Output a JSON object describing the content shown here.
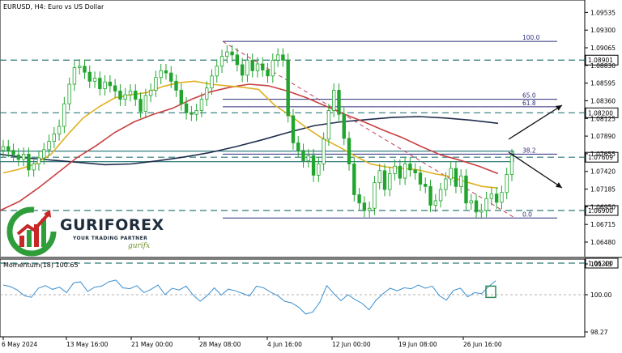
{
  "header": {
    "title": "EURUSD, H4:  Euro vs US Dollar"
  },
  "brand": {
    "name": "GURIFOREX",
    "tagline": "YOUR TRADING PARTNER",
    "signature": "gurifx"
  },
  "colors": {
    "price_candle": "#22a52e",
    "ema_fast": "#e0b020",
    "ema_slow": "#c94040",
    "ma_long": "#1f2d4d",
    "fib": "#2c2c7a",
    "level": "#2d7a78",
    "momentum": "#3a8fd0",
    "arrow": "#111111"
  },
  "chart_data": [
    {
      "type": "line",
      "title": "EURUSD, H4:  Euro vs US Dollar",
      "xlabel": "",
      "ylabel": "",
      "ylim": [
        1.0634,
        1.0955
      ],
      "x_ticks": [
        "6 May 2024",
        "13 May 16:00",
        "21 May 00:00",
        "28 May 08:00",
        "4 Jun 16:00",
        "12 Jun 00:00",
        "19 Jun 08:00",
        "26 Jun 16:00"
      ],
      "y_ticks": [
        1.09535,
        1.093,
        1.09065,
        1.0883,
        1.08595,
        1.0836,
        1.08125,
        1.0789,
        1.07655,
        1.0742,
        1.07185,
        1.0695,
        1.06715,
        1.0648
      ],
      "series": [
        {
          "name": "price",
          "values": [
            1.0775,
            1.077,
            1.0764,
            1.0758,
            1.0765,
            1.0744,
            1.0752,
            1.076,
            1.0771,
            1.0782,
            1.0792,
            1.0802,
            1.0832,
            1.0858,
            1.088,
            1.0882,
            1.0874,
            1.0862,
            1.0866,
            1.0852,
            1.0861,
            1.0856,
            1.0849,
            1.0838,
            1.0844,
            1.0849,
            1.0838,
            1.0822,
            1.0843,
            1.085,
            1.0867,
            1.0876,
            1.0873,
            1.0862,
            1.085,
            1.0832,
            1.082,
            1.0818,
            1.0823,
            1.0838,
            1.0853,
            1.0869,
            1.0882,
            1.0895,
            1.0901,
            1.0897,
            1.0884,
            1.087,
            1.089,
            1.0876,
            1.0885,
            1.0877,
            1.0869,
            1.089,
            1.0897,
            1.089,
            1.0816,
            1.078,
            1.077,
            1.0756,
            1.0763,
            1.0737,
            1.0752,
            1.0785,
            1.0823,
            1.085,
            1.0818,
            1.0786,
            1.0752,
            1.0711,
            1.07,
            1.069,
            1.0693,
            1.0727,
            1.0743,
            1.0718,
            1.0739,
            1.0749,
            1.0733,
            1.0752,
            1.0744,
            1.074,
            1.0725,
            1.0722,
            1.0697,
            1.0703,
            1.0718,
            1.0732,
            1.0746,
            1.0722,
            1.0736,
            1.07,
            1.0703,
            1.0688,
            1.069,
            1.0706,
            1.0712,
            1.0701,
            1.0714,
            1.0738,
            1.0763
          ]
        },
        {
          "name": "ema_fast",
          "values": [
            1.074,
            1.0745,
            1.0752,
            1.0765,
            1.079,
            1.0813,
            1.0828,
            1.084,
            1.0844,
            1.0847,
            1.0855,
            1.086,
            1.0862,
            1.0858,
            1.0856,
            1.0854,
            1.0851,
            1.083,
            1.0816,
            1.08,
            1.0786,
            1.0775,
            1.0763,
            1.0752,
            1.0748,
            1.0746,
            1.0744,
            1.0739,
            1.0735,
            1.0728,
            1.0722,
            1.072
          ]
        },
        {
          "name": "ema_slow",
          "values": [
            1.069,
            1.0702,
            1.072,
            1.074,
            1.076,
            1.0776,
            1.0794,
            1.0808,
            1.0818,
            1.0826,
            1.0838,
            1.0848,
            1.0854,
            1.0858,
            1.0856,
            1.0849,
            1.084,
            1.0829,
            1.0818,
            1.0808,
            1.0797,
            1.0787,
            1.0775,
            1.0764,
            1.0757,
            1.0749,
            1.0739
          ]
        },
        {
          "name": "ma_long",
          "values": [
            1.0765,
            1.076,
            1.0757,
            1.0754,
            1.0751,
            1.0752,
            1.0756,
            1.0761,
            1.0767,
            1.0775,
            1.0784,
            1.0794,
            1.0803,
            1.0808,
            1.0811,
            1.0814,
            1.0815,
            1.0813,
            1.081,
            1.0806
          ]
        },
        {
          "name": "momentum",
          "values": [
            100.45,
            100.38,
            100.22,
            99.95,
            99.88,
            100.3,
            100.42,
            100.25,
            100.35,
            100.1,
            100.55,
            100.6,
            100.15,
            100.35,
            100.4,
            100.6,
            100.68,
            100.32,
            100.28,
            100.42,
            100.1,
            100.25,
            100.45,
            100.0,
            100.3,
            100.22,
            100.4,
            99.98,
            99.7,
            99.96,
            100.32,
            99.98,
            100.26,
            100.18,
            100.06,
            99.94,
            100.4,
            100.32,
            100.12,
            99.96,
            99.7,
            99.62,
            99.42,
            99.1,
            99.2,
            99.65,
            100.42,
            100.05,
            99.72,
            100.0,
            99.78,
            99.6,
            99.3,
            99.75,
            100.05,
            100.3,
            100.18,
            100.32,
            100.28,
            100.45,
            100.3,
            100.4,
            99.95,
            99.75,
            100.2,
            100.3,
            99.9,
            100.1,
            100.05,
            100.38,
            100.65
          ]
        }
      ],
      "fib_levels": [
        {
          "label": "100.0",
          "value": 1.0915
        },
        {
          "label": "65.0",
          "value": 1.0838
        },
        {
          "label": "61.8",
          "value": 1.0828
        },
        {
          "label": "38.2",
          "value": 1.0765
        },
        {
          "label": "0.0",
          "value": 1.068
        }
      ],
      "price_labels": [
        {
          "label": "1.08901",
          "value": 1.08901
        },
        {
          "label": "1.08200",
          "value": 1.082
        },
        {
          "label": "1.07609",
          "value": 1.07609
        },
        {
          "label": "1.06900",
          "value": 1.069
        },
        {
          "label": "1.06200",
          "value": 1.062
        }
      ],
      "annotations": [
        "bullish arrow",
        "bearish arrow"
      ],
      "grid": false
    },
    {
      "type": "line",
      "title": "Momentum(18) 100.65",
      "ylim": [
        98.27,
        101.43
      ],
      "y_ticks": [
        101.43,
        100.0,
        98.27
      ],
      "series_ref": "momentum"
    }
  ]
}
